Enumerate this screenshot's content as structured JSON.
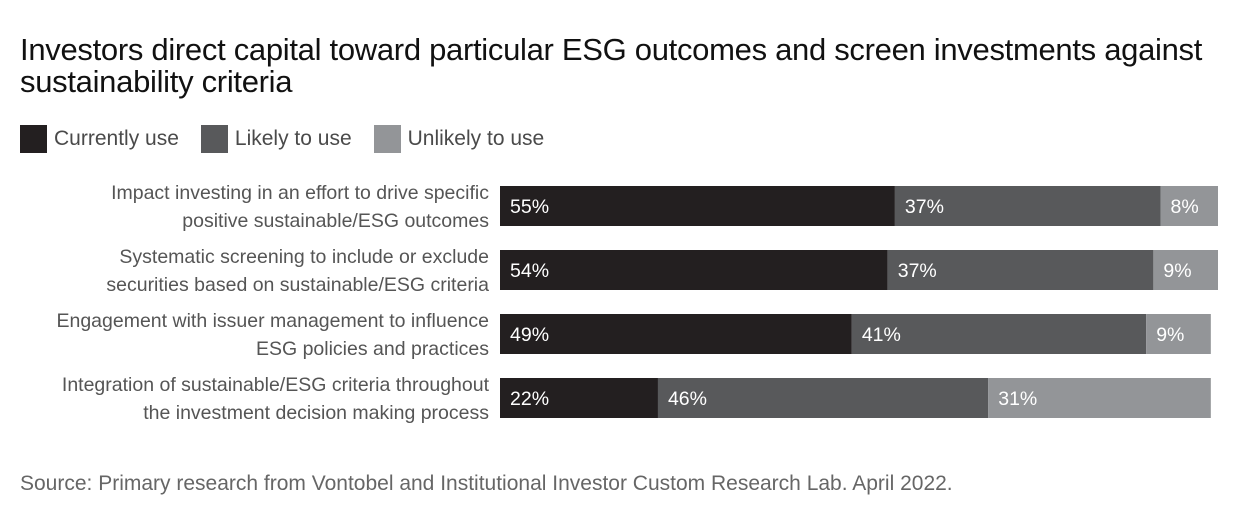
{
  "chart_data": {
    "type": "bar",
    "orientation": "horizontal",
    "stacked": true,
    "title": "Investors direct capital toward particular ESG outcomes and screen investments against sustainability criteria",
    "categories": [
      [
        "Impact investing in an effort to drive specific",
        "positive sustainable/ESG outcomes"
      ],
      [
        "Systematic screening to include or exclude",
        "securities based on sustainable/ESG criteria"
      ],
      [
        "Engagement with issuer management to influence",
        "ESG policies and practices"
      ],
      [
        "Integration of sustainable/ESG criteria throughout",
        "the investment decision making process"
      ]
    ],
    "series": [
      {
        "name": "Currently use",
        "color": "#231f20",
        "values": [
          55,
          54,
          49,
          22
        ]
      },
      {
        "name": "Likely to use",
        "color": "#58595b",
        "values": [
          37,
          37,
          41,
          46
        ]
      },
      {
        "name": "Unlikely to use",
        "color": "#939598",
        "values": [
          8,
          9,
          9,
          31
        ]
      }
    ],
    "value_suffix": "%",
    "legend_position": "top-left",
    "grid": false
  },
  "source": "Source: Primary research from Vontobel and Institutional Investor Custom Research Lab. April 2022."
}
